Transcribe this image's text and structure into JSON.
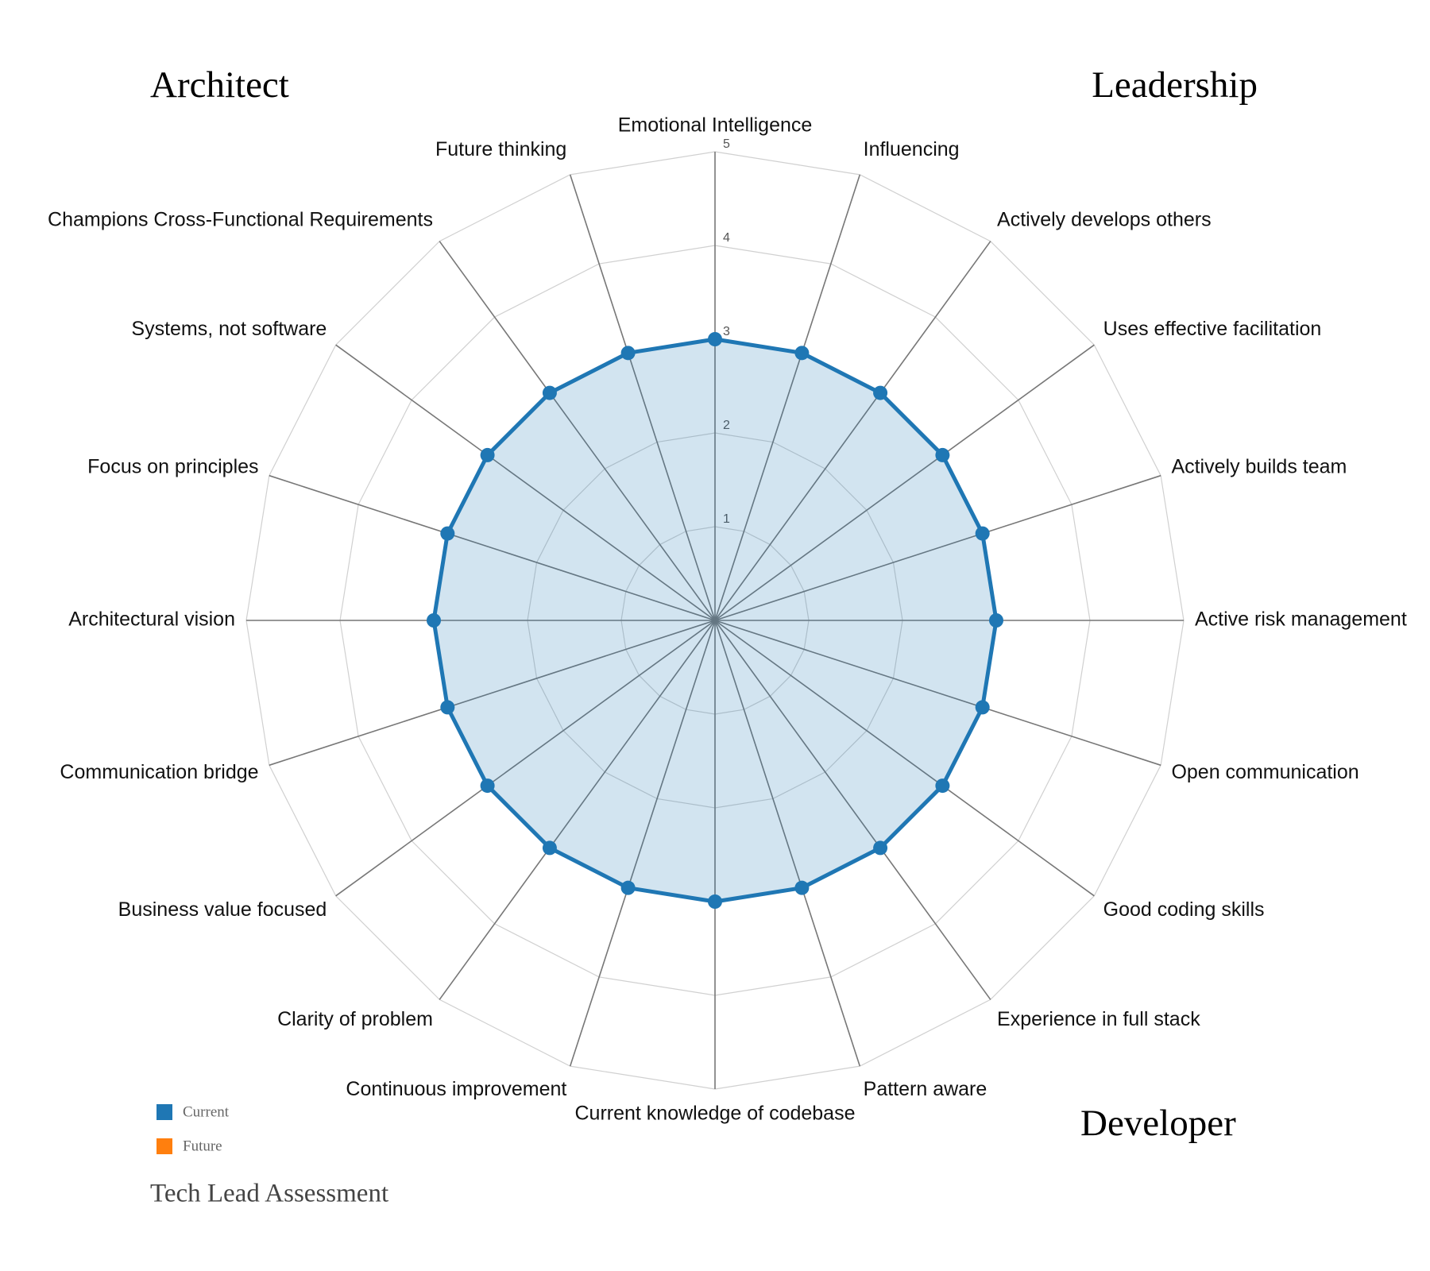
{
  "chart_data": {
    "type": "radar",
    "title": "Tech Lead Assessment",
    "categories": [
      "Emotional Intelligence",
      "Influencing",
      "Actively develops others",
      "Uses effective facilitation",
      "Actively builds team",
      "Active risk management",
      "Open communication",
      "Good coding skills",
      "Experience in full stack",
      "Pattern aware",
      "Current knowledge of codebase",
      "Continuous improvement",
      "Clarity of problem",
      "Business value focused",
      "Communication bridge",
      "Architectural vision",
      "Focus on principles",
      "Systems, not software",
      "Champions Cross-Functional Requirements",
      "Future thinking"
    ],
    "series": [
      {
        "name": "Current",
        "color": "#1f77b4",
        "values": [
          3,
          3,
          3,
          3,
          3,
          3,
          3,
          3,
          3,
          3,
          3,
          3,
          3,
          3,
          3,
          3,
          3,
          3,
          3,
          3
        ]
      },
      {
        "name": "Future",
        "color": "#ff7f0e",
        "values": [
          null,
          null,
          null,
          null,
          null,
          null,
          null,
          null,
          null,
          null,
          null,
          null,
          null,
          null,
          null,
          null,
          null,
          null,
          null,
          null
        ]
      }
    ],
    "rlim": [
      0,
      5
    ],
    "rticks": [
      1,
      2,
      3,
      4,
      5
    ],
    "annotations": [
      "Architect",
      "Leadership",
      "Developer"
    ]
  }
}
